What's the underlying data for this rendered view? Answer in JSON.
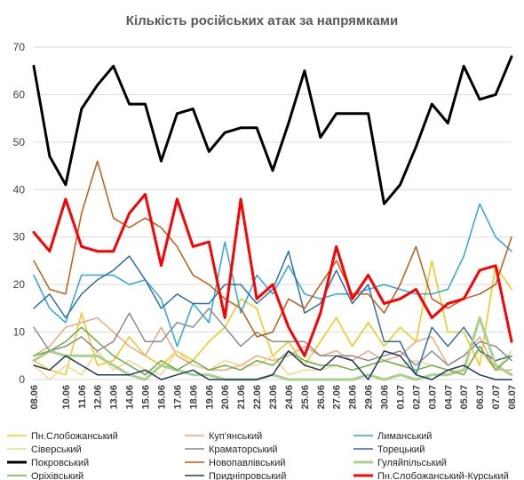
{
  "chart_data": {
    "type": "line",
    "title": "Кількість російських атак за напрямками",
    "xlabel": "",
    "ylabel": "",
    "ylim": [
      0,
      70
    ],
    "yticks": [
      0,
      10,
      20,
      30,
      40,
      50,
      60,
      70
    ],
    "grid": true,
    "legend_position": "bottom",
    "x": [
      "08.06",
      "09.06",
      "10.06",
      "11.06",
      "12.06",
      "13.06",
      "14.06",
      "15.06",
      "16.06",
      "17.06",
      "18.06",
      "19.06",
      "20.06",
      "21.06",
      "22.06",
      "23.06",
      "24.06",
      "25.06",
      "26.06",
      "27.06",
      "28.06",
      "29.06",
      "30.06",
      "01.07",
      "02.07",
      "03.07",
      "04.07",
      "05.07",
      "06.07",
      "07.07",
      "08.07"
    ],
    "xtick_labels": [
      "08.06",
      "10.06",
      "11.06",
      "12.06",
      "13.06",
      "14.06",
      "15.06",
      "16.06",
      "17.06",
      "18.06",
      "19.06",
      "20.06",
      "21.06",
      "22.06",
      "23.06",
      "24.06",
      "25.06",
      "26.06",
      "27.06",
      "28.06",
      "29.06",
      "30.06",
      "01.07",
      "02.07",
      "03.07",
      "04.07",
      "05.07",
      "06.07",
      "07.07",
      "08.07"
    ],
    "series": [
      {
        "name": "Пн.Слобожанський",
        "color": "#f5c518",
        "width": 1.5,
        "values": [
          4,
          2,
          1,
          14,
          3,
          4,
          9,
          5,
          3,
          6,
          4,
          8,
          11,
          17,
          15,
          5,
          8,
          3,
          8,
          13,
          7,
          12,
          7,
          11,
          8,
          25,
          10,
          10,
          3,
          24,
          19
        ]
      },
      {
        "name": "Куп'янський",
        "color": "#f0a780",
        "width": 1.5,
        "values": [
          5,
          7,
          11,
          12,
          13,
          10,
          7,
          5,
          11,
          5,
          3,
          2,
          2,
          3,
          5,
          4,
          5,
          7,
          5,
          6,
          4,
          6,
          4,
          5,
          8,
          9,
          3,
          5,
          9,
          2,
          2
        ]
      },
      {
        "name": "Лиманський",
        "color": "#29a8e0",
        "width": 1.5,
        "values": [
          22,
          15,
          12,
          22,
          22,
          22,
          20,
          21,
          17,
          7,
          16,
          12,
          29,
          14,
          22,
          18,
          24,
          18,
          17,
          18,
          18,
          19,
          20,
          19,
          18,
          18,
          19,
          26,
          37,
          30,
          27
        ]
      },
      {
        "name": "Сіверський",
        "color": "#f7d588",
        "width": 1.5,
        "values": [
          3,
          0,
          3,
          1,
          6,
          2,
          4,
          2,
          1,
          6,
          3,
          2,
          4,
          3,
          3,
          5,
          1,
          2,
          2,
          3,
          2,
          3,
          4,
          3,
          4,
          3,
          2,
          2,
          6,
          2,
          6
        ]
      },
      {
        "name": "Краматорський",
        "color": "#8c8c8c",
        "width": 1.5,
        "values": [
          11,
          6,
          7,
          9,
          6,
          8,
          14,
          8,
          8,
          12,
          11,
          15,
          11,
          7,
          10,
          8,
          8,
          8,
          5,
          5,
          5,
          4,
          5,
          6,
          3,
          6,
          3,
          5,
          8,
          7,
          4
        ]
      },
      {
        "name": "Торецький",
        "color": "#2f6fa8",
        "width": 1.5,
        "values": [
          15,
          18,
          13,
          18,
          21,
          23,
          26,
          21,
          15,
          18,
          16,
          16,
          20,
          20,
          16,
          19,
          27,
          14,
          16,
          23,
          16,
          20,
          8,
          8,
          1,
          11,
          7,
          11,
          6,
          4,
          5
        ]
      },
      {
        "name": "Покровський",
        "color": "#000000",
        "width": 3,
        "values": [
          66,
          47,
          41,
          57,
          62,
          66,
          58,
          58,
          46,
          56,
          57,
          48,
          52,
          53,
          53,
          44,
          54,
          65,
          51,
          56,
          56,
          56,
          37,
          41,
          49,
          58,
          54,
          66,
          59,
          60,
          68
        ]
      },
      {
        "name": "Новопавлівський",
        "color": "#c55a11",
        "width": 1.5,
        "values": [
          25,
          19,
          18,
          35,
          46,
          34,
          32,
          34,
          32,
          28,
          22,
          20,
          17,
          15,
          9,
          10,
          17,
          15,
          20,
          25,
          18,
          18,
          14,
          20,
          28,
          17,
          15,
          17,
          18,
          20,
          30
        ]
      },
      {
        "name": "Гуляйпільський",
        "color": "#a9d18e",
        "width": 3,
        "values": [
          4,
          6,
          5,
          5,
          5,
          3,
          1,
          0,
          3,
          2,
          1,
          1,
          0,
          0,
          0,
          1,
          0,
          0,
          0,
          0,
          0,
          1,
          0,
          1,
          0,
          1,
          1,
          2,
          13,
          3,
          1
        ]
      },
      {
        "name": "Оріхівський",
        "color": "#70ad47",
        "width": 1.5,
        "values": [
          5,
          6,
          8,
          11,
          8,
          5,
          3,
          1,
          4,
          2,
          4,
          2,
          3,
          2,
          4,
          3,
          6,
          4,
          3,
          3,
          2,
          3,
          4,
          3,
          2,
          3,
          2,
          1,
          7,
          2,
          5
        ]
      },
      {
        "name": "Придніпровський",
        "color": "#1f3864",
        "width": 1.5,
        "values": [
          3,
          2,
          5,
          3,
          1,
          1,
          1,
          2,
          0,
          1,
          2,
          0,
          0,
          0,
          0,
          1,
          6,
          3,
          2,
          5,
          4,
          0,
          6,
          5,
          1,
          0,
          2,
          3,
          1,
          0,
          0
        ]
      },
      {
        "name": "Пн.Слобожанський-Курський",
        "color": "#ff0000",
        "width": 3,
        "values": [
          31,
          27,
          38,
          28,
          27,
          27,
          35,
          39,
          24,
          38,
          28,
          29,
          13,
          38,
          17,
          20,
          11,
          5,
          14,
          28,
          17,
          22,
          16,
          17,
          19,
          13,
          16,
          17,
          23,
          24,
          8
        ]
      }
    ]
  }
}
